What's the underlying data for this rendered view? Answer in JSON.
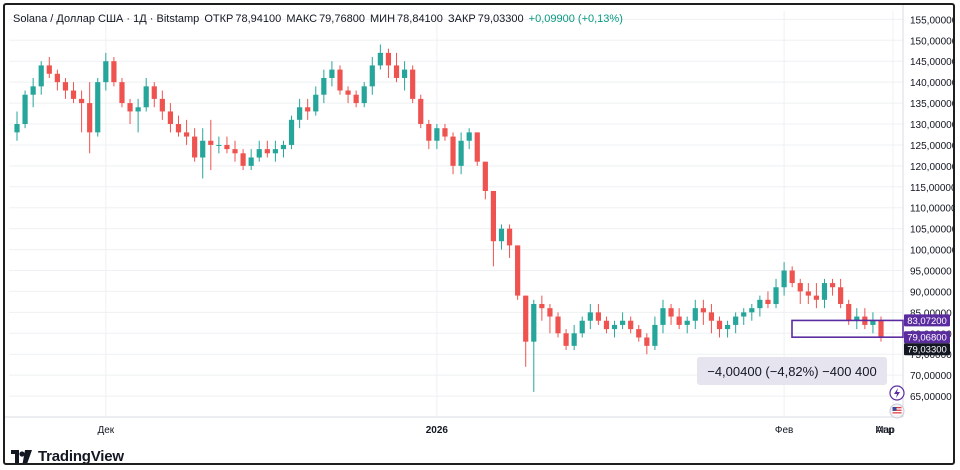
{
  "header": {
    "symbol": "Solana / Доллар США · 1Д · Bitstamp",
    "open_label": "ОТКР",
    "open_value": "78,94100",
    "high_label": "МАКС",
    "high_value": "79,76800",
    "low_label": "МИН",
    "low_value": "78,84100",
    "close_label": "ЗАКР",
    "close_value": "79,03300",
    "change": "+0,09900 (+0,13%)"
  },
  "measure_label": "−4,00400 (−4,82%) −400 400",
  "brand": "TradingView",
  "colors": {
    "up": "#26a69a",
    "down": "#ef5350",
    "accent": "#5b2ca0",
    "grid": "#eef0f3"
  },
  "icons": [
    "lightning-icon",
    "flag-icon",
    "tradingview-logo-icon"
  ],
  "chart_data": {
    "type": "candlestick",
    "ylim": [
      60,
      157
    ],
    "y_ticks": [
      "155,00000",
      "150,00000",
      "145,00000",
      "140,00000",
      "135,00000",
      "130,00000",
      "125,00000",
      "120,00000",
      "115,00000",
      "110,00000",
      "105,00000",
      "100,00000",
      "95,00000",
      "90,00000",
      "85,00000",
      "80,00000",
      "75,00000",
      "70,00000",
      "65,00000"
    ],
    "x_ticks": [
      "Дек",
      "2026",
      "Фев",
      "Мар",
      "Апр"
    ],
    "price_labels": [
      {
        "value": "83,07200",
        "style": "accent"
      },
      {
        "value": "79,06800",
        "style": "accent"
      },
      {
        "value": "79,03300",
        "style": "dark"
      }
    ],
    "measure_range": [
      83.072,
      79.068
    ],
    "candles": [
      [
        128,
        133,
        126,
        130
      ],
      [
        130,
        138,
        129,
        137
      ],
      [
        137,
        141,
        134,
        139
      ],
      [
        139,
        145,
        137,
        144
      ],
      [
        144,
        146,
        141,
        142
      ],
      [
        142,
        143,
        138,
        140
      ],
      [
        140,
        141,
        136,
        138
      ],
      [
        138,
        140,
        135,
        136
      ],
      [
        136,
        138,
        128,
        135
      ],
      [
        135,
        140,
        123,
        128
      ],
      [
        128,
        141,
        127,
        140
      ],
      [
        140,
        147,
        138,
        145
      ],
      [
        145,
        146,
        139,
        140
      ],
      [
        140,
        141,
        134,
        135
      ],
      [
        135,
        136,
        130,
        133
      ],
      [
        133,
        136,
        128,
        134
      ],
      [
        134,
        141,
        133,
        139
      ],
      [
        139,
        140,
        134,
        136
      ],
      [
        136,
        138,
        131,
        133
      ],
      [
        133,
        135,
        128,
        130
      ],
      [
        130,
        132,
        127,
        128
      ],
      [
        128,
        131,
        125,
        127
      ],
      [
        127,
        129,
        121,
        122
      ],
      [
        122,
        129,
        117,
        126
      ],
      [
        126,
        131,
        119,
        125
      ],
      [
        125,
        127,
        123,
        125
      ],
      [
        125,
        127,
        123,
        124
      ],
      [
        124,
        126,
        121,
        123
      ],
      [
        123,
        124,
        119,
        120
      ],
      [
        120,
        124,
        119,
        122
      ],
      [
        122,
        126,
        121,
        124
      ],
      [
        124,
        126,
        122,
        123
      ],
      [
        123,
        126,
        121,
        124
      ],
      [
        124,
        126,
        122,
        125
      ],
      [
        125,
        132,
        124,
        131
      ],
      [
        131,
        136,
        129,
        134
      ],
      [
        134,
        136,
        131,
        133
      ],
      [
        133,
        139,
        132,
        137
      ],
      [
        137,
        143,
        135,
        141
      ],
      [
        141,
        145,
        139,
        143
      ],
      [
        143,
        144,
        137,
        138
      ],
      [
        138,
        139,
        135,
        137
      ],
      [
        137,
        138,
        134,
        135
      ],
      [
        135,
        140,
        134,
        139
      ],
      [
        139,
        146,
        137,
        144
      ],
      [
        144,
        149,
        143,
        147
      ],
      [
        147,
        148,
        141,
        144
      ],
      [
        144,
        147,
        140,
        141
      ],
      [
        141,
        145,
        138,
        143
      ],
      [
        143,
        144,
        135,
        136
      ],
      [
        136,
        137,
        129,
        130
      ],
      [
        130,
        131,
        124,
        126
      ],
      [
        126,
        130,
        124,
        129
      ],
      [
        129,
        130,
        126,
        127
      ],
      [
        127,
        128,
        118,
        120
      ],
      [
        120,
        128,
        118,
        126
      ],
      [
        126,
        129,
        124,
        128
      ],
      [
        128,
        128,
        120,
        121
      ],
      [
        121,
        121,
        112,
        114
      ],
      [
        114,
        114,
        96,
        102
      ],
      [
        102,
        106,
        100,
        105
      ],
      [
        105,
        106,
        98,
        101
      ],
      [
        101,
        101,
        88,
        89
      ],
      [
        89,
        89,
        72,
        78
      ],
      [
        78,
        88,
        66,
        87
      ],
      [
        87,
        89,
        83,
        86
      ],
      [
        86,
        87,
        80,
        84
      ],
      [
        84,
        85,
        79,
        80
      ],
      [
        80,
        81,
        76,
        77
      ],
      [
        77,
        82,
        76,
        80
      ],
      [
        80,
        84,
        79,
        83
      ],
      [
        83,
        87,
        81,
        85
      ],
      [
        85,
        87,
        82,
        83
      ],
      [
        83,
        84,
        80,
        81
      ],
      [
        81,
        83,
        79,
        82
      ],
      [
        82,
        85,
        81,
        83
      ],
      [
        83,
        84,
        80,
        81
      ],
      [
        81,
        82,
        78,
        79
      ],
      [
        79,
        80,
        75,
        77
      ],
      [
        77,
        84,
        76,
        82
      ],
      [
        82,
        88,
        80,
        86
      ],
      [
        86,
        87,
        82,
        84
      ],
      [
        84,
        86,
        81,
        82
      ],
      [
        82,
        84,
        80,
        83
      ],
      [
        83,
        88,
        81,
        86
      ],
      [
        86,
        88,
        82,
        85
      ],
      [
        85,
        87,
        80,
        83
      ],
      [
        83,
        84,
        79,
        81
      ],
      [
        81,
        83,
        79,
        82
      ],
      [
        82,
        85,
        80,
        84
      ],
      [
        84,
        86,
        82,
        85
      ],
      [
        85,
        87,
        83,
        86
      ],
      [
        86,
        89,
        84,
        88
      ],
      [
        88,
        90,
        86,
        87
      ],
      [
        87,
        93,
        86,
        91
      ],
      [
        91,
        97,
        89,
        95
      ],
      [
        95,
        96,
        91,
        92
      ],
      [
        92,
        93,
        87,
        90
      ],
      [
        90,
        92,
        87,
        89
      ],
      [
        89,
        92,
        86,
        88
      ],
      [
        88,
        93,
        86,
        92
      ],
      [
        92,
        93,
        89,
        91
      ],
      [
        91,
        93,
        86,
        87
      ],
      [
        87,
        88,
        82,
        83
      ],
      [
        83,
        86,
        81,
        84
      ],
      [
        84,
        86,
        81,
        82
      ],
      [
        82,
        85,
        80,
        83
      ],
      [
        83,
        84,
        78,
        79
      ]
    ]
  }
}
